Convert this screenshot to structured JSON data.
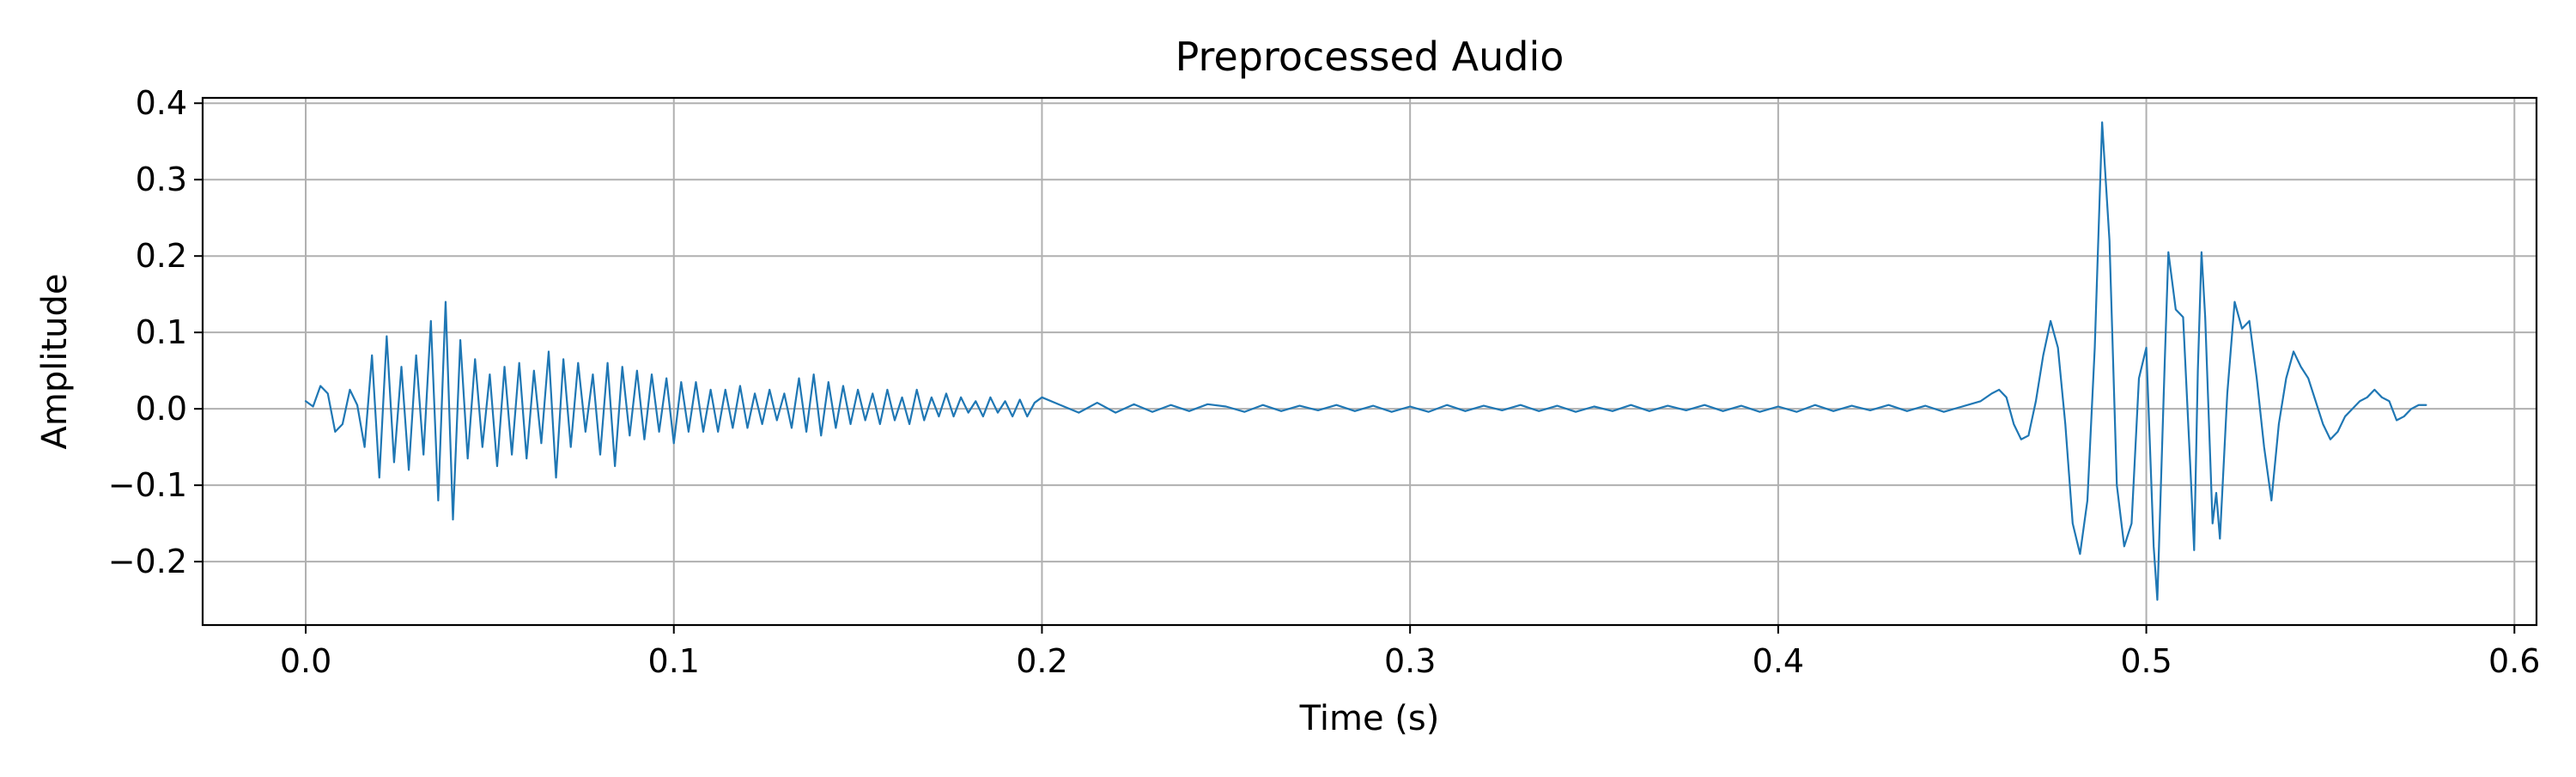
{
  "chart_data": {
    "type": "line",
    "title": "Preprocessed Audio",
    "xlabel": "Time (s)",
    "ylabel": "Amplitude",
    "xlim": [
      -0.028,
      0.606
    ],
    "ylim": [
      -0.283,
      0.407
    ],
    "x_ticks": [
      0.0,
      0.1,
      0.2,
      0.3,
      0.4,
      0.5,
      0.6
    ],
    "x_tick_labels": [
      "0.0",
      "0.1",
      "0.2",
      "0.3",
      "0.4",
      "0.5",
      "0.6"
    ],
    "y_ticks": [
      -0.2,
      -0.1,
      0.0,
      0.1,
      0.2,
      0.3,
      0.4
    ],
    "y_tick_labels": [
      "−0.2",
      "−0.1",
      "0.0",
      "0.1",
      "0.2",
      "0.3",
      "0.4"
    ],
    "grid": true,
    "series": [
      {
        "color": "#1f77b4",
        "x_start": 0.0,
        "x_end": 0.576,
        "points": [
          [
            0.0,
            0.01
          ],
          [
            0.002,
            0.003
          ],
          [
            0.004,
            0.03
          ],
          [
            0.006,
            0.02
          ],
          [
            0.008,
            -0.03
          ],
          [
            0.01,
            -0.02
          ],
          [
            0.012,
            0.025
          ],
          [
            0.014,
            0.005
          ],
          [
            0.016,
            -0.05
          ],
          [
            0.018,
            0.07
          ],
          [
            0.02,
            -0.09
          ],
          [
            0.022,
            0.095
          ],
          [
            0.024,
            -0.07
          ],
          [
            0.026,
            0.055
          ],
          [
            0.028,
            -0.08
          ],
          [
            0.03,
            0.07
          ],
          [
            0.032,
            -0.06
          ],
          [
            0.034,
            0.115
          ],
          [
            0.036,
            -0.12
          ],
          [
            0.038,
            0.14
          ],
          [
            0.04,
            -0.145
          ],
          [
            0.042,
            0.09
          ],
          [
            0.044,
            -0.065
          ],
          [
            0.046,
            0.065
          ],
          [
            0.048,
            -0.05
          ],
          [
            0.05,
            0.045
          ],
          [
            0.052,
            -0.075
          ],
          [
            0.054,
            0.055
          ],
          [
            0.056,
            -0.06
          ],
          [
            0.058,
            0.06
          ],
          [
            0.06,
            -0.065
          ],
          [
            0.062,
            0.05
          ],
          [
            0.064,
            -0.045
          ],
          [
            0.066,
            0.075
          ],
          [
            0.068,
            -0.09
          ],
          [
            0.07,
            0.065
          ],
          [
            0.072,
            -0.05
          ],
          [
            0.074,
            0.06
          ],
          [
            0.076,
            -0.03
          ],
          [
            0.078,
            0.045
          ],
          [
            0.08,
            -0.06
          ],
          [
            0.082,
            0.06
          ],
          [
            0.084,
            -0.075
          ],
          [
            0.086,
            0.055
          ],
          [
            0.088,
            -0.035
          ],
          [
            0.09,
            0.05
          ],
          [
            0.092,
            -0.04
          ],
          [
            0.094,
            0.045
          ],
          [
            0.096,
            -0.03
          ],
          [
            0.098,
            0.04
          ],
          [
            0.1,
            -0.045
          ],
          [
            0.102,
            0.035
          ],
          [
            0.104,
            -0.03
          ],
          [
            0.106,
            0.035
          ],
          [
            0.108,
            -0.03
          ],
          [
            0.11,
            0.025
          ],
          [
            0.112,
            -0.03
          ],
          [
            0.114,
            0.025
          ],
          [
            0.116,
            -0.025
          ],
          [
            0.118,
            0.03
          ],
          [
            0.12,
            -0.025
          ],
          [
            0.122,
            0.02
          ],
          [
            0.124,
            -0.02
          ],
          [
            0.126,
            0.025
          ],
          [
            0.128,
            -0.015
          ],
          [
            0.13,
            0.02
          ],
          [
            0.132,
            -0.025
          ],
          [
            0.134,
            0.04
          ],
          [
            0.136,
            -0.03
          ],
          [
            0.138,
            0.045
          ],
          [
            0.14,
            -0.035
          ],
          [
            0.142,
            0.035
          ],
          [
            0.144,
            -0.025
          ],
          [
            0.146,
            0.03
          ],
          [
            0.148,
            -0.02
          ],
          [
            0.15,
            0.025
          ],
          [
            0.152,
            -0.015
          ],
          [
            0.154,
            0.02
          ],
          [
            0.156,
            -0.02
          ],
          [
            0.158,
            0.025
          ],
          [
            0.16,
            -0.015
          ],
          [
            0.162,
            0.015
          ],
          [
            0.164,
            -0.02
          ],
          [
            0.166,
            0.025
          ],
          [
            0.168,
            -0.015
          ],
          [
            0.17,
            0.015
          ],
          [
            0.172,
            -0.01
          ],
          [
            0.174,
            0.02
          ],
          [
            0.176,
            -0.01
          ],
          [
            0.178,
            0.015
          ],
          [
            0.18,
            -0.005
          ],
          [
            0.182,
            0.01
          ],
          [
            0.184,
            -0.01
          ],
          [
            0.186,
            0.015
          ],
          [
            0.188,
            -0.005
          ],
          [
            0.19,
            0.01
          ],
          [
            0.192,
            -0.01
          ],
          [
            0.194,
            0.012
          ],
          [
            0.196,
            -0.01
          ],
          [
            0.198,
            0.008
          ],
          [
            0.2,
            0.015
          ],
          [
            0.205,
            0.005
          ],
          [
            0.21,
            -0.005
          ],
          [
            0.215,
            0.008
          ],
          [
            0.22,
            -0.005
          ],
          [
            0.225,
            0.006
          ],
          [
            0.23,
            -0.004
          ],
          [
            0.235,
            0.005
          ],
          [
            0.24,
            -0.003
          ],
          [
            0.245,
            0.006
          ],
          [
            0.25,
            0.003
          ],
          [
            0.255,
            -0.004
          ],
          [
            0.26,
            0.005
          ],
          [
            0.265,
            -0.003
          ],
          [
            0.27,
            0.004
          ],
          [
            0.275,
            -0.002
          ],
          [
            0.28,
            0.005
          ],
          [
            0.285,
            -0.003
          ],
          [
            0.29,
            0.004
          ],
          [
            0.295,
            -0.004
          ],
          [
            0.3,
            0.003
          ],
          [
            0.305,
            -0.004
          ],
          [
            0.31,
            0.005
          ],
          [
            0.315,
            -0.003
          ],
          [
            0.32,
            0.004
          ],
          [
            0.325,
            -0.002
          ],
          [
            0.33,
            0.005
          ],
          [
            0.335,
            -0.003
          ],
          [
            0.34,
            0.004
          ],
          [
            0.345,
            -0.004
          ],
          [
            0.35,
            0.003
          ],
          [
            0.355,
            -0.003
          ],
          [
            0.36,
            0.005
          ],
          [
            0.365,
            -0.003
          ],
          [
            0.37,
            0.004
          ],
          [
            0.375,
            -0.002
          ],
          [
            0.38,
            0.005
          ],
          [
            0.385,
            -0.003
          ],
          [
            0.39,
            0.004
          ],
          [
            0.395,
            -0.004
          ],
          [
            0.4,
            0.003
          ],
          [
            0.405,
            -0.004
          ],
          [
            0.41,
            0.005
          ],
          [
            0.415,
            -0.003
          ],
          [
            0.42,
            0.004
          ],
          [
            0.425,
            -0.002
          ],
          [
            0.43,
            0.005
          ],
          [
            0.435,
            -0.003
          ],
          [
            0.44,
            0.004
          ],
          [
            0.445,
            -0.004
          ],
          [
            0.45,
            0.003
          ],
          [
            0.455,
            0.01
          ],
          [
            0.458,
            0.02
          ],
          [
            0.46,
            0.025
          ],
          [
            0.462,
            0.015
          ],
          [
            0.464,
            -0.02
          ],
          [
            0.466,
            -0.04
          ],
          [
            0.468,
            -0.035
          ],
          [
            0.47,
            0.01
          ],
          [
            0.472,
            0.07
          ],
          [
            0.474,
            0.115
          ],
          [
            0.476,
            0.08
          ],
          [
            0.478,
            -0.02
          ],
          [
            0.48,
            -0.15
          ],
          [
            0.482,
            -0.19
          ],
          [
            0.484,
            -0.12
          ],
          [
            0.486,
            0.08
          ],
          [
            0.488,
            0.375
          ],
          [
            0.49,
            0.22
          ],
          [
            0.492,
            -0.1
          ],
          [
            0.494,
            -0.18
          ],
          [
            0.496,
            -0.15
          ],
          [
            0.498,
            0.04
          ],
          [
            0.5,
            0.08
          ],
          [
            0.502,
            -0.18
          ],
          [
            0.503,
            -0.25
          ],
          [
            0.505,
            0.06
          ],
          [
            0.506,
            0.205
          ],
          [
            0.508,
            0.13
          ],
          [
            0.51,
            0.12
          ],
          [
            0.512,
            -0.08
          ],
          [
            0.513,
            -0.185
          ],
          [
            0.514,
            0.05
          ],
          [
            0.515,
            0.205
          ],
          [
            0.516,
            0.12
          ],
          [
            0.518,
            -0.15
          ],
          [
            0.519,
            -0.11
          ],
          [
            0.52,
            -0.17
          ],
          [
            0.522,
            0.02
          ],
          [
            0.524,
            0.14
          ],
          [
            0.526,
            0.105
          ],
          [
            0.528,
            0.115
          ],
          [
            0.53,
            0.04
          ],
          [
            0.532,
            -0.05
          ],
          [
            0.534,
            -0.12
          ],
          [
            0.536,
            -0.02
          ],
          [
            0.538,
            0.04
          ],
          [
            0.54,
            0.075
          ],
          [
            0.542,
            0.055
          ],
          [
            0.544,
            0.04
          ],
          [
            0.546,
            0.01
          ],
          [
            0.548,
            -0.02
          ],
          [
            0.55,
            -0.04
          ],
          [
            0.552,
            -0.03
          ],
          [
            0.554,
            -0.01
          ],
          [
            0.556,
            0.0
          ],
          [
            0.558,
            0.01
          ],
          [
            0.56,
            0.015
          ],
          [
            0.562,
            0.025
          ],
          [
            0.564,
            0.015
          ],
          [
            0.566,
            0.01
          ],
          [
            0.568,
            -0.015
          ],
          [
            0.57,
            -0.01
          ],
          [
            0.572,
            0.0
          ],
          [
            0.574,
            0.005
          ],
          [
            0.576,
            0.005
          ]
        ]
      }
    ]
  }
}
